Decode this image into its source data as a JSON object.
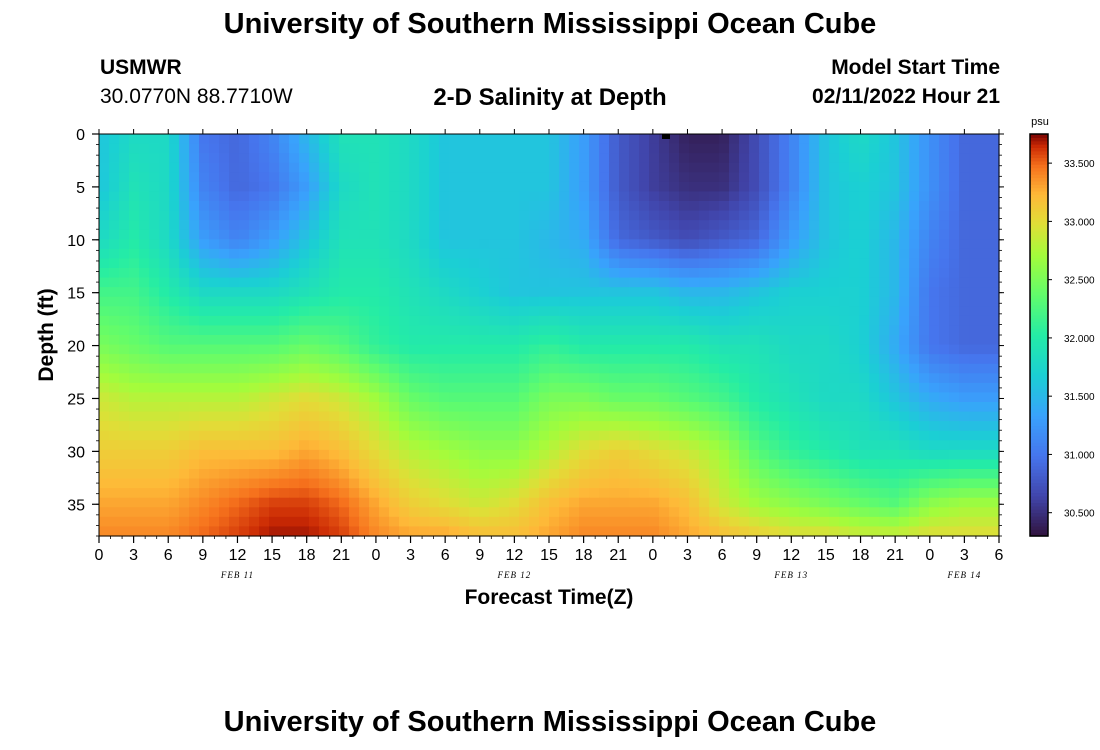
{
  "header": {
    "title": "University of Southern Mississippi Ocean Cube",
    "station": "USMWR",
    "coordinates": "30.0770N  88.7710W",
    "plot_title": "2-D Salinity at Depth",
    "start_label": "Model Start Time",
    "start_value": "02/11/2022 Hour 21"
  },
  "footer": {
    "title": "University of Southern Mississippi Ocean Cube"
  },
  "chart_data": {
    "type": "heatmap",
    "title": "2-D Salinity at Depth",
    "xlabel": "Forecast Time(Z)",
    "ylabel": "Depth (ft)",
    "x_tick_labels": [
      "0",
      "3",
      "6",
      "9",
      "12",
      "15",
      "18",
      "21",
      "0",
      "3",
      "6",
      "9",
      "12",
      "15",
      "18",
      "21",
      "0",
      "3",
      "6",
      "9",
      "12",
      "15",
      "18",
      "21",
      "0",
      "3",
      "6"
    ],
    "x_range_hours": [
      0,
      78
    ],
    "date_labels": [
      {
        "label": "FEB 11",
        "hour": 12
      },
      {
        "label": "FEB 12",
        "hour": 36
      },
      {
        "label": "FEB 13",
        "hour": 60
      },
      {
        "label": "FEB 14",
        "hour": 75
      }
    ],
    "y_tick_labels": [
      "0",
      "5",
      "10",
      "15",
      "20",
      "25",
      "30",
      "35"
    ],
    "ylim": [
      0,
      38
    ],
    "y_inverted": true,
    "colorbar": {
      "unit": "psu",
      "range": [
        30.3,
        33.75
      ],
      "ticks": [
        "30.500",
        "31.000",
        "31.500",
        "32.000",
        "32.500",
        "33.000",
        "33.500"
      ]
    },
    "grid_depths_ft": [
      0,
      5,
      10,
      15,
      20,
      25,
      30,
      35,
      38
    ],
    "grid_hours": [
      0,
      3,
      6,
      9,
      12,
      15,
      18,
      21,
      24,
      27,
      30,
      33,
      36,
      39,
      42,
      45,
      48,
      51,
      54,
      57,
      60,
      63,
      66,
      69,
      72,
      75,
      78
    ],
    "salinity": [
      [
        31.6,
        31.8,
        31.8,
        31.0,
        30.9,
        31.1,
        31.5,
        31.9,
        31.9,
        31.8,
        31.6,
        31.6,
        31.6,
        31.6,
        31.3,
        30.8,
        30.6,
        30.4,
        30.4,
        30.7,
        31.1,
        31.6,
        31.8,
        31.6,
        31.2,
        30.9,
        30.9
      ],
      [
        31.6,
        31.9,
        31.8,
        31.1,
        30.9,
        31.0,
        31.3,
        31.8,
        31.9,
        31.8,
        31.6,
        31.6,
        31.6,
        31.6,
        31.3,
        30.8,
        30.6,
        30.5,
        30.5,
        30.7,
        31.1,
        31.6,
        31.7,
        31.6,
        31.2,
        30.9,
        30.9
      ],
      [
        31.8,
        32.0,
        31.8,
        31.3,
        31.1,
        31.3,
        31.6,
        31.9,
        31.9,
        31.8,
        31.6,
        31.6,
        31.6,
        31.5,
        31.4,
        30.9,
        30.8,
        30.7,
        30.8,
        30.9,
        31.3,
        31.6,
        31.7,
        31.5,
        31.1,
        30.9,
        30.9
      ],
      [
        32.2,
        32.2,
        32.0,
        31.8,
        31.8,
        31.8,
        31.9,
        32.0,
        32.0,
        31.9,
        31.8,
        31.7,
        31.6,
        31.6,
        31.6,
        31.6,
        31.6,
        31.5,
        31.5,
        31.6,
        31.7,
        31.7,
        31.7,
        31.5,
        31.0,
        30.9,
        30.9
      ],
      [
        32.5,
        32.4,
        32.3,
        32.3,
        32.3,
        32.3,
        32.4,
        32.3,
        32.1,
        32.0,
        32.0,
        32.0,
        32.0,
        32.1,
        32.0,
        32.0,
        32.0,
        32.0,
        31.9,
        31.9,
        31.8,
        31.8,
        31.7,
        31.4,
        31.0,
        30.9,
        30.9
      ],
      [
        32.9,
        32.8,
        32.8,
        32.8,
        32.8,
        32.9,
        33.0,
        32.9,
        32.7,
        32.4,
        32.3,
        32.3,
        32.3,
        32.5,
        32.5,
        32.4,
        32.4,
        32.3,
        32.2,
        32.0,
        31.9,
        31.8,
        31.8,
        31.6,
        31.4,
        31.3,
        31.3
      ],
      [
        33.1,
        33.1,
        33.1,
        33.2,
        33.2,
        33.2,
        33.3,
        33.2,
        33.0,
        32.8,
        32.7,
        32.6,
        32.6,
        32.8,
        33.0,
        33.1,
        33.0,
        32.9,
        32.7,
        32.3,
        32.1,
        32.0,
        31.9,
        31.9,
        31.8,
        31.8,
        31.8
      ],
      [
        33.3,
        33.3,
        33.3,
        33.4,
        33.5,
        33.6,
        33.6,
        33.5,
        33.3,
        33.1,
        33.0,
        32.9,
        33.0,
        33.2,
        33.3,
        33.3,
        33.3,
        33.2,
        32.9,
        32.7,
        32.6,
        32.5,
        32.4,
        32.3,
        32.6,
        32.7,
        32.7
      ],
      [
        33.4,
        33.4,
        33.4,
        33.5,
        33.6,
        33.7,
        33.7,
        33.6,
        33.4,
        33.3,
        33.3,
        33.2,
        33.2,
        33.3,
        33.4,
        33.4,
        33.4,
        33.3,
        33.2,
        33.1,
        33.0,
        33.0,
        32.9,
        32.9,
        33.0,
        33.0,
        33.0
      ]
    ]
  }
}
